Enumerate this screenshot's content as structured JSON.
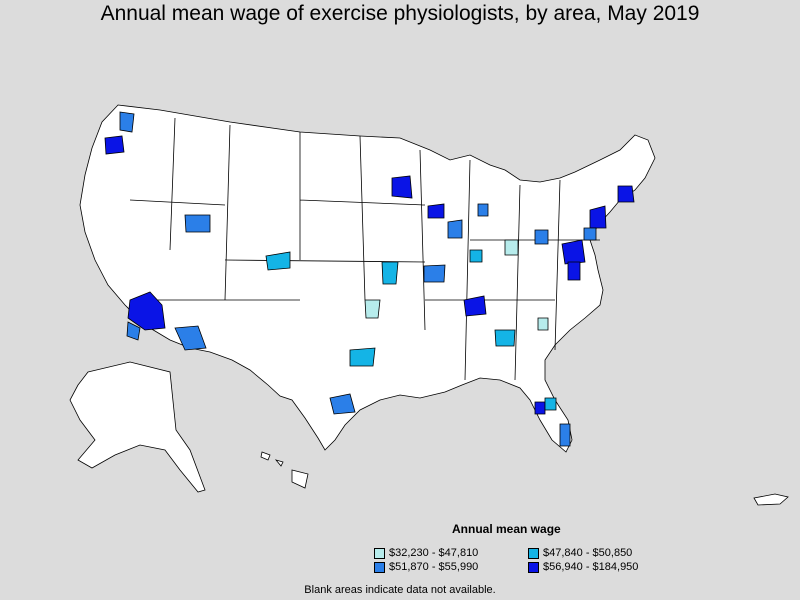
{
  "title": "Annual mean wage of exercise physiologists, by area, May 2019",
  "legend": {
    "title": "Annual mean wage",
    "items": [
      {
        "label": "$32,230 - $47,810",
        "color": "#b7ecec"
      },
      {
        "label": "$47,840 - $50,850",
        "color": "#14b4e6"
      },
      {
        "label": "$51,870 - $55,990",
        "color": "#2b7fe8"
      },
      {
        "label": "$56,940 - $184,950",
        "color": "#0a14e6"
      }
    ]
  },
  "footnote": "Blank areas indicate data not available.",
  "colors": {
    "background": "#dcdcdc",
    "land": "#ffffff",
    "border": "#000000"
  }
}
